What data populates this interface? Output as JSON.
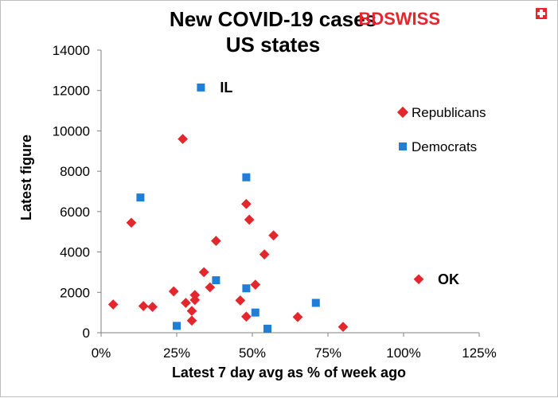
{
  "logo": {
    "part1": "BD",
    "part2": "SWISS",
    "color": "#e4262d"
  },
  "chart_data": {
    "type": "scatter",
    "title_lines": [
      "New COVID-19 cases",
      "US states"
    ],
    "xlabel": "Latest 7 day avg as % of week ago",
    "ylabel": "Latest figure",
    "xlim": [
      0,
      1.25
    ],
    "ylim": [
      0,
      14000
    ],
    "x_ticks": [
      0,
      0.25,
      0.5,
      0.75,
      1.0,
      1.25
    ],
    "x_tick_labels": [
      "0%",
      "25%",
      "50%",
      "75%",
      "100%",
      "125%"
    ],
    "y_ticks": [
      0,
      2000,
      4000,
      6000,
      8000,
      10000,
      12000,
      14000
    ],
    "y_tick_labels": [
      "0",
      "2000",
      "4000",
      "6000",
      "8000",
      "10000",
      "12000",
      "14000"
    ],
    "grid": false,
    "legend_position": "right",
    "series": [
      {
        "name": "Republicans",
        "marker": "diamond",
        "color": "#e4262d",
        "points": [
          {
            "x": 0.04,
            "y": 1400
          },
          {
            "x": 0.1,
            "y": 5450
          },
          {
            "x": 0.14,
            "y": 1320
          },
          {
            "x": 0.17,
            "y": 1280
          },
          {
            "x": 0.24,
            "y": 2050
          },
          {
            "x": 0.27,
            "y": 9600
          },
          {
            "x": 0.28,
            "y": 1480
          },
          {
            "x": 0.3,
            "y": 600
          },
          {
            "x": 0.3,
            "y": 1080
          },
          {
            "x": 0.31,
            "y": 1620
          },
          {
            "x": 0.31,
            "y": 1870
          },
          {
            "x": 0.34,
            "y": 3000
          },
          {
            "x": 0.36,
            "y": 2250
          },
          {
            "x": 0.38,
            "y": 4550
          },
          {
            "x": 0.46,
            "y": 1600
          },
          {
            "x": 0.48,
            "y": 800
          },
          {
            "x": 0.48,
            "y": 6380
          },
          {
            "x": 0.49,
            "y": 5600
          },
          {
            "x": 0.51,
            "y": 2380
          },
          {
            "x": 0.54,
            "y": 3880
          },
          {
            "x": 0.57,
            "y": 4820
          },
          {
            "x": 0.65,
            "y": 780
          },
          {
            "x": 0.8,
            "y": 290
          },
          {
            "x": 1.05,
            "y": 2650
          }
        ]
      },
      {
        "name": "Democrats",
        "marker": "square",
        "color": "#1f7ed6",
        "points": [
          {
            "x": 0.13,
            "y": 6700
          },
          {
            "x": 0.25,
            "y": 340
          },
          {
            "x": 0.33,
            "y": 12150
          },
          {
            "x": 0.38,
            "y": 2600
          },
          {
            "x": 0.48,
            "y": 7700
          },
          {
            "x": 0.48,
            "y": 2200
          },
          {
            "x": 0.51,
            "y": 1000
          },
          {
            "x": 0.55,
            "y": 200
          },
          {
            "x": 0.71,
            "y": 1480
          }
        ]
      }
    ],
    "annotations": [
      {
        "text": "IL",
        "x": 0.33,
        "y": 12150
      },
      {
        "text": "OK",
        "x": 1.05,
        "y": 2650
      }
    ]
  }
}
